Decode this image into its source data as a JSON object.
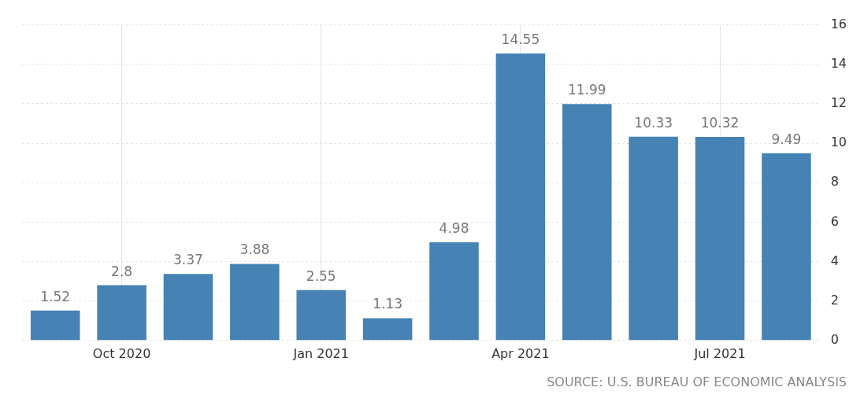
{
  "chart_data": {
    "type": "bar",
    "categories": [
      null,
      "Oct 2020",
      null,
      null,
      "Jan 2021",
      null,
      null,
      "Apr 2021",
      null,
      null,
      "Jul 2021",
      null
    ],
    "values": [
      1.52,
      2.8,
      3.37,
      3.88,
      2.55,
      1.13,
      4.98,
      14.55,
      11.99,
      10.33,
      10.32,
      9.49
    ],
    "color": "#4682b4",
    "ylim": [
      0,
      16
    ],
    "yticks": [
      0,
      2,
      4,
      6,
      8,
      10,
      12,
      14,
      16
    ],
    "grid": true,
    "data_labels": true,
    "annotations": [
      "SOURCE: U.S. BUREAU OF ECONOMIC ANALYSIS"
    ]
  }
}
